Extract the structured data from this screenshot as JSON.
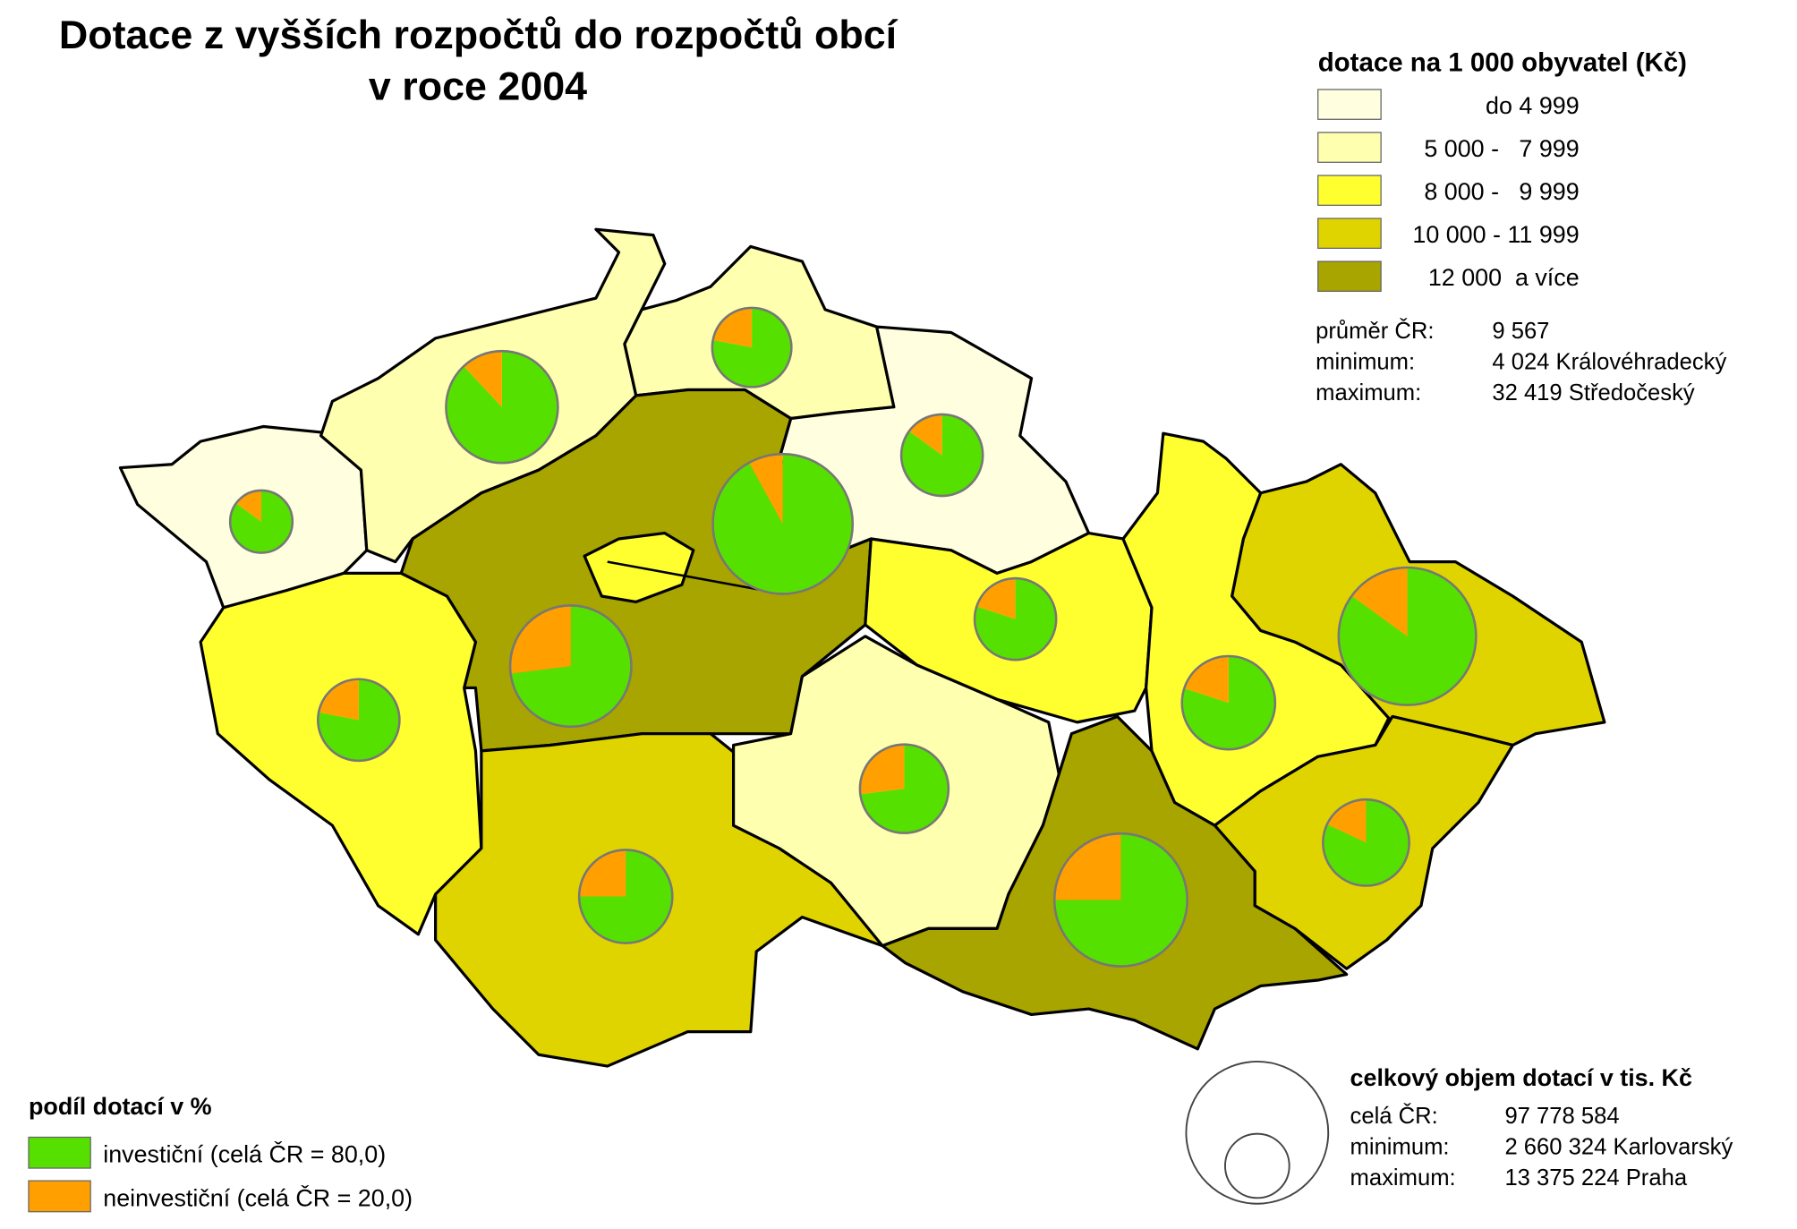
{
  "header": {
    "title_line1": "Dotace z vyšších rozpočtů do rozpočtů obcí",
    "title_line2": "v roce 2004"
  },
  "legend_rate": {
    "title": "dotace na 1 000 obyvatel (Kč)",
    "classes": [
      {
        "label": "do 4 999",
        "color": "#ffffe0"
      },
      {
        "label": "5 000 -   7 999",
        "color": "#ffffb0"
      },
      {
        "label": "8 000 -   9 999",
        "color": "#ffff30"
      },
      {
        "label": "10 000 - 11 999",
        "color": "#e0d400"
      },
      {
        "label": "12 000  a více",
        "color": "#a8a400"
      }
    ]
  },
  "rate_stats": [
    {
      "label": "průměr ČR:",
      "value": "9 567"
    },
    {
      "label": "minimum:",
      "value": "4 024 Královéhradecký"
    },
    {
      "label": "maximum:",
      "value": "32 419 Středočeský"
    }
  ],
  "legend_share": {
    "title": "podíl dotací v %",
    "items": [
      {
        "label": "investiční (celá ČR = 80,0)",
        "color": "#55e000"
      },
      {
        "label": "neinvestiční (celá ČR = 20,0)",
        "color": "#ffa000"
      }
    ]
  },
  "legend_volume": {
    "title": "celkový objem dotací v tis. Kč",
    "stats": [
      {
        "label": "celá ČR:",
        "value": "97 778 584"
      },
      {
        "label": "minimum:",
        "value": "2 660 324 Karlovarský"
      },
      {
        "label": "maximum:",
        "value": "13 375 224 Praha"
      }
    ]
  },
  "pies": [
    {
      "investicni": 85,
      "neinvesticni": 15,
      "volume": 2660324
    },
    {
      "investicni": 88,
      "neinvesticni": 12,
      "volume": 8560000
    },
    {
      "investicni": 78,
      "neinvesticni": 22,
      "volume": 4295000
    },
    {
      "investicni": 92,
      "neinvesticni": 8,
      "volume": 13375224
    },
    {
      "investicni": 85,
      "neinvesticni": 15,
      "volume": 4551000
    },
    {
      "investicni": 73,
      "neinvesticni": 27,
      "volume": 10047000
    },
    {
      "investicni": 78,
      "neinvesticni": 22,
      "volume": 4551000
    },
    {
      "investicni": 80,
      "neinvesticni": 20,
      "volume": 4551000
    },
    {
      "investicni": 73,
      "neinvesticni": 27,
      "volume": 5365000
    },
    {
      "investicni": 75,
      "neinvesticni": 25,
      "volume": 5945000
    },
    {
      "investicni": 75,
      "neinvesticni": 25,
      "volume": 12071000
    },
    {
      "investicni": 80,
      "neinvesticni": 20,
      "volume": 5945000
    },
    {
      "investicni": 85,
      "neinvesticni": 15,
      "volume": 12933000
    },
    {
      "investicni": 82,
      "neinvesticni": 18,
      "volume": 5086000
    }
  ]
}
